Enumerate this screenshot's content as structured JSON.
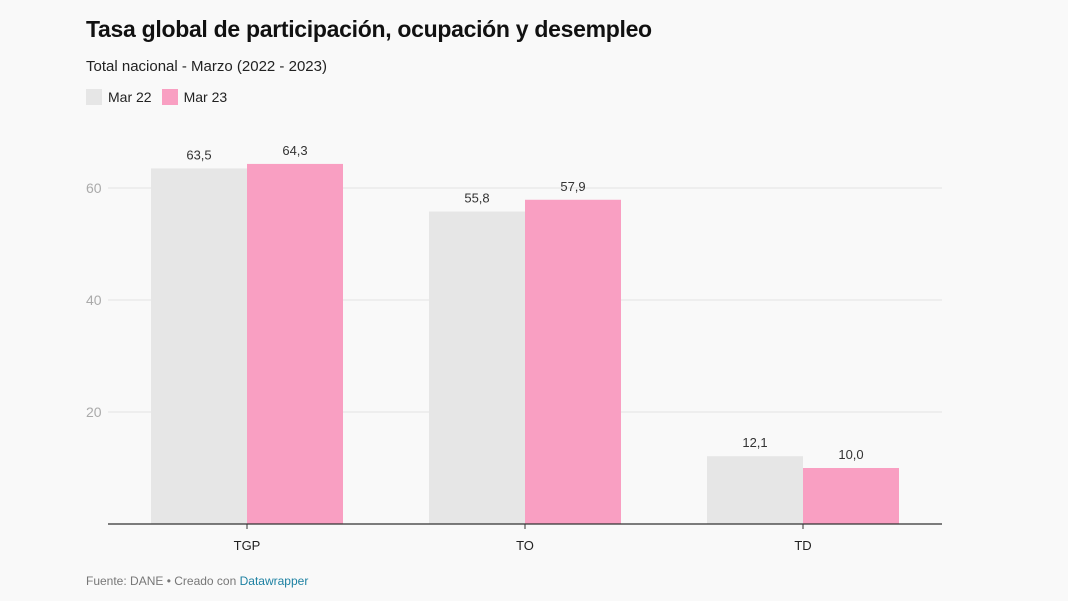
{
  "chart_data": {
    "type": "bar",
    "title": "Tasa global de participación, ocupación y desempleo",
    "subtitle": "Total nacional - Marzo (2022 - 2023)",
    "categories": [
      "TGP",
      "TO",
      "TD"
    ],
    "series": [
      {
        "name": "Mar 22",
        "color": "#e6e6e6",
        "values": [
          63.5,
          55.8,
          12.1
        ],
        "labels": [
          "63,5",
          "55,8",
          "12,1"
        ]
      },
      {
        "name": "Mar 23",
        "color": "#f99fc2",
        "values": [
          64.3,
          57.9,
          10.0
        ],
        "labels": [
          "64,3",
          "57,9",
          "10,0"
        ]
      }
    ],
    "yticks": [
      20,
      40,
      60
    ],
    "ylim": [
      0,
      65
    ],
    "grid": true,
    "legend": "top-left",
    "xlabel": "",
    "ylabel": ""
  },
  "footer": {
    "source": "Fuente: DANE • Creado con ",
    "link": "Datawrapper"
  }
}
